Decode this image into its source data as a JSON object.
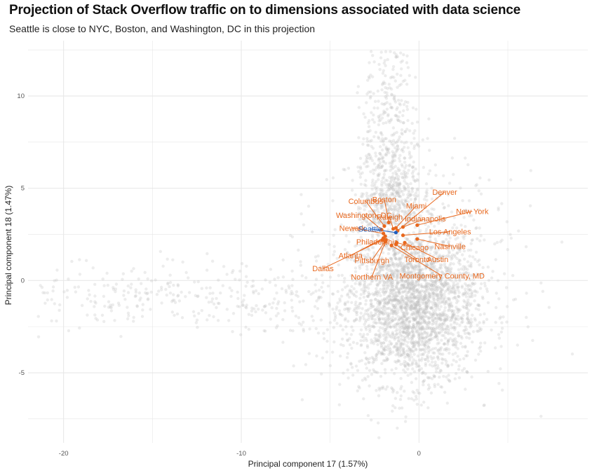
{
  "title": "Projection of Stack Overflow traffic on to dimensions associated with data science",
  "subtitle": "Seattle is close to NYC, Boston, and Washington, DC in this projection",
  "colors": {
    "background_points": "#bdbdbd",
    "highlight": "#e8681e",
    "focus": "#1f5fbf",
    "grid": "#e6e6e6"
  },
  "chart_data": {
    "type": "scatter",
    "xlabel": "Principal component 17 (1.57%)",
    "ylabel": "Principal component 18 (1.47%)",
    "xlim": [
      -22,
      9.5
    ],
    "ylim": [
      -8.8,
      13
    ],
    "xticks": [
      {
        "value": -20,
        "label": "-20"
      },
      {
        "value": -10,
        "label": "-10"
      },
      {
        "value": 0,
        "label": "0"
      }
    ],
    "yticks": [
      {
        "value": -5,
        "label": "-5"
      },
      {
        "value": 0,
        "label": "0"
      },
      {
        "value": 5,
        "label": "5"
      },
      {
        "value": 10,
        "label": "10"
      }
    ],
    "grid": true,
    "background_series": "approximately 40,000 grey semi-transparent points densest around (-0.5, -1.5) with a vertical plume up to y≈12.5 near x≈-1.5 and a sparse tail to x≈-21",
    "focus_point": {
      "label": "Seattle",
      "x": -1.3,
      "y": 2.6,
      "label_x": -2.75,
      "label_y": 2.8
    },
    "highlighted": [
      {
        "label": "Denver",
        "x": -1.2,
        "y": 2.7,
        "label_x": 1.45,
        "label_y": 4.8
      },
      {
        "label": "Boston",
        "x": -1.7,
        "y": 3.15,
        "label_x": -1.95,
        "label_y": 4.4
      },
      {
        "label": "Miami",
        "x": -1.3,
        "y": 2.85,
        "label_x": -0.15,
        "label_y": 4.05
      },
      {
        "label": "Columbus",
        "x": -1.95,
        "y": 2.95,
        "label_x": -3.0,
        "label_y": 4.3
      },
      {
        "label": "New York",
        "x": -0.1,
        "y": 3.0,
        "label_x": 3.0,
        "label_y": 3.75
      },
      {
        "label": "Indianapolis",
        "x": -0.9,
        "y": 2.9,
        "label_x": 0.35,
        "label_y": 3.35
      },
      {
        "label": "Raleigh",
        "x": -1.45,
        "y": 2.8,
        "label_x": -1.65,
        "label_y": 3.45
      },
      {
        "label": "Washington, DC",
        "x": -2.1,
        "y": 2.75,
        "label_x": -3.1,
        "label_y": 3.55
      },
      {
        "label": "Newark",
        "x": -2.0,
        "y": 2.55,
        "label_x": -3.75,
        "label_y": 2.85
      },
      {
        "label": "Los Angeles",
        "x": -0.9,
        "y": 2.45,
        "label_x": 1.75,
        "label_y": 2.65
      },
      {
        "label": "Philadelphia",
        "x": -1.9,
        "y": 2.4,
        "label_x": -2.35,
        "label_y": 2.1
      },
      {
        "label": "Chicago",
        "x": -1.25,
        "y": 2.05,
        "label_x": -0.25,
        "label_y": 1.8
      },
      {
        "label": "Nashville",
        "x": -0.1,
        "y": 2.25,
        "label_x": 1.75,
        "label_y": 1.85
      },
      {
        "label": "Atlanta",
        "x": -2.0,
        "y": 2.3,
        "label_x": -3.85,
        "label_y": 1.35
      },
      {
        "label": "Pittsburgh",
        "x": -1.85,
        "y": 2.2,
        "label_x": -2.65,
        "label_y": 1.1
      },
      {
        "label": "Toronto",
        "x": -1.3,
        "y": 1.95,
        "label_x": -0.1,
        "label_y": 1.15
      },
      {
        "label": "Austin",
        "x": -0.8,
        "y": 2.05,
        "label_x": 1.05,
        "label_y": 1.15
      },
      {
        "label": "Dallas",
        "x": -2.05,
        "y": 2.2,
        "label_x": -5.4,
        "label_y": 0.65
      },
      {
        "label": "Northern VA",
        "x": -1.9,
        "y": 2.1,
        "label_x": -2.65,
        "label_y": 0.2
      },
      {
        "label": "Montgomery County, MD",
        "x": -1.55,
        "y": 1.9,
        "label_x": 1.3,
        "label_y": 0.25
      }
    ]
  }
}
